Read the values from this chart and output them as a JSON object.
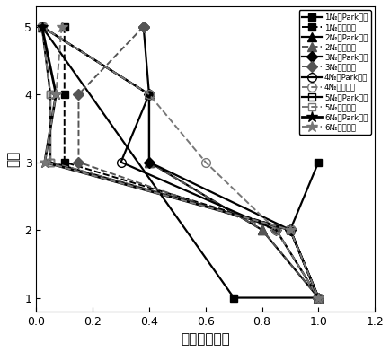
{
  "xlabel": "相对损伤指数",
  "ylabel": "楼层",
  "xlim": [
    0,
    1.2
  ],
  "ylim": [
    0.8,
    5.3
  ],
  "yticks": [
    1,
    2,
    3,
    4,
    5
  ],
  "xticks": [
    0.0,
    0.2,
    0.4,
    0.6,
    0.8,
    1.0,
    1.2
  ],
  "legend_labels": [
    "1№波Park模型",
    "1№波层模型",
    "2№波Park模型",
    "2№波层模型",
    "3№波Park模型",
    "3№波层模型",
    "4№波Park模型",
    "4№波层模型",
    "5№波Park模型",
    "5№波层模型",
    "6№波Park模型",
    "6№波层模型"
  ],
  "series": [
    {
      "x": [
        0.02,
        0.7,
        1.0,
        0.9,
        1.0
      ],
      "y": [
        5,
        1,
        1,
        2,
        3
      ],
      "color": "#000000",
      "linestyle": "-",
      "marker": "s",
      "markersize": 6,
      "linewidth": 1.6,
      "fillstyle": "full"
    },
    {
      "x": [
        0.1,
        0.1,
        0.1,
        0.9,
        1.0
      ],
      "y": [
        5,
        4,
        3,
        2,
        1
      ],
      "color": "#000000",
      "linestyle": "--",
      "marker": "s",
      "markersize": 6,
      "linewidth": 1.4,
      "fillstyle": "full"
    },
    {
      "x": [
        0.02,
        0.4,
        0.4,
        0.8,
        1.0
      ],
      "y": [
        5,
        4,
        3,
        2,
        1
      ],
      "color": "#000000",
      "linestyle": "-",
      "marker": "^",
      "markersize": 7,
      "linewidth": 1.6,
      "fillstyle": "full"
    },
    {
      "x": [
        0.02,
        0.4,
        0.4,
        0.8,
        1.0
      ],
      "y": [
        5,
        4,
        3,
        2,
        1
      ],
      "color": "#555555",
      "linestyle": "--",
      "marker": "^",
      "markersize": 7,
      "linewidth": 1.4,
      "fillstyle": "full"
    },
    {
      "x": [
        0.38,
        0.4,
        0.4,
        0.9,
        1.0
      ],
      "y": [
        5,
        4,
        3,
        2,
        1
      ],
      "color": "#000000",
      "linestyle": "-",
      "marker": "D",
      "markersize": 6,
      "linewidth": 1.6,
      "fillstyle": "full"
    },
    {
      "x": [
        0.38,
        0.15,
        0.15,
        0.85,
        1.0
      ],
      "y": [
        5,
        4,
        3,
        2,
        1
      ],
      "color": "#555555",
      "linestyle": "--",
      "marker": "D",
      "markersize": 6,
      "linewidth": 1.4,
      "fillstyle": "full"
    },
    {
      "x": [
        0.02,
        0.4,
        0.3,
        0.85,
        1.0
      ],
      "y": [
        5,
        4,
        3,
        2,
        1
      ],
      "color": "#000000",
      "linestyle": "-",
      "marker": "o",
      "markersize": 7,
      "linewidth": 1.6,
      "fillstyle": "none"
    },
    {
      "x": [
        0.02,
        0.4,
        0.6,
        0.85,
        1.0
      ],
      "y": [
        5,
        4,
        3,
        2,
        1
      ],
      "color": "#777777",
      "linestyle": "--",
      "marker": "o",
      "markersize": 7,
      "linewidth": 1.4,
      "fillstyle": "none"
    },
    {
      "x": [
        0.02,
        0.05,
        0.05,
        0.9,
        1.0
      ],
      "y": [
        5,
        4,
        3,
        2,
        1
      ],
      "color": "#000000",
      "linestyle": "-",
      "marker": "s",
      "markersize": 6,
      "linewidth": 1.6,
      "fillstyle": "none"
    },
    {
      "x": [
        0.02,
        0.05,
        0.05,
        0.9,
        1.0
      ],
      "y": [
        5,
        4,
        3,
        2,
        1
      ],
      "color": "#777777",
      "linestyle": "--",
      "marker": "s",
      "markersize": 6,
      "linewidth": 1.4,
      "fillstyle": "none"
    },
    {
      "x": [
        0.02,
        0.07,
        0.03,
        0.9,
        1.0
      ],
      "y": [
        5,
        4,
        3,
        2,
        1
      ],
      "color": "#000000",
      "linestyle": "-",
      "marker": "*",
      "markersize": 9,
      "linewidth": 2.0,
      "fillstyle": "full"
    },
    {
      "x": [
        0.09,
        0.07,
        0.03,
        0.9,
        1.0
      ],
      "y": [
        5,
        4,
        3,
        2,
        1
      ],
      "color": "#777777",
      "linestyle": "--",
      "marker": "*",
      "markersize": 9,
      "linewidth": 1.4,
      "fillstyle": "full"
    }
  ]
}
